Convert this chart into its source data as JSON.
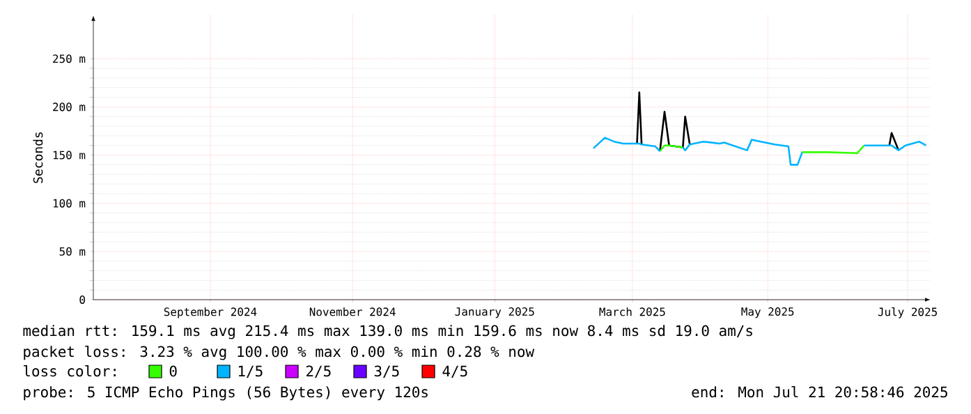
{
  "chart_data": {
    "type": "line",
    "ylabel": "Seconds",
    "x": [
      "2025-02-24",
      "2025-03-01",
      "2025-03-05",
      "2025-03-09",
      "2025-03-15",
      "2025-03-16",
      "2025-03-17",
      "2025-03-23",
      "2025-03-25",
      "2025-03-27",
      "2025-03-29",
      "2025-04-04",
      "2025-04-05",
      "2025-04-07",
      "2025-04-13",
      "2025-04-20",
      "2025-04-22",
      "2025-05-02",
      "2025-05-04",
      "2025-05-08",
      "2025-05-14",
      "2025-05-20",
      "2025-05-21",
      "2025-05-24",
      "2025-05-26",
      "2025-06-06",
      "2025-06-19",
      "2025-06-22",
      "2025-07-03",
      "2025-07-04",
      "2025-07-07",
      "2025-07-10",
      "2025-07-16",
      "2025-07-19"
    ],
    "series": [
      {
        "color": "#000000",
        "values": [
          null,
          null,
          null,
          null,
          162,
          215,
          161,
          null,
          154,
          195,
          160,
          158,
          190,
          161,
          null,
          null,
          null,
          null,
          null,
          null,
          null,
          null,
          null,
          null,
          null,
          null,
          null,
          null,
          160,
          173,
          155,
          null,
          null,
          null
        ]
      },
      {
        "name": "0",
        "color": "#33ff00",
        "values": [
          null,
          null,
          null,
          null,
          null,
          null,
          null,
          null,
          154,
          160,
          160,
          158,
          null,
          null,
          null,
          null,
          null,
          null,
          null,
          null,
          null,
          null,
          null,
          null,
          153,
          153,
          152,
          160,
          null,
          null,
          null,
          null,
          null,
          null
        ]
      },
      {
        "name": "1/5",
        "color": "#00b4ff",
        "values": [
          157,
          168,
          164,
          162,
          162,
          162,
          161,
          159,
          154,
          null,
          null,
          158,
          155,
          161,
          164,
          162,
          163,
          155,
          166,
          164,
          161,
          159,
          140,
          140,
          153,
          null,
          null,
          160,
          160,
          160,
          155,
          160,
          164,
          160
        ]
      },
      {
        "name": "2/5",
        "color": "#cc00ff",
        "values": [
          null,
          null,
          null,
          null,
          null,
          null,
          null,
          null,
          null,
          null,
          null,
          null,
          null,
          null,
          null,
          null,
          null,
          null,
          null,
          null,
          null,
          null,
          null,
          null,
          null,
          null,
          null,
          null,
          null,
          null,
          null,
          null,
          null,
          null
        ]
      },
      {
        "name": "3/5",
        "color": "#6a00ff",
        "values": [
          null,
          null,
          null,
          null,
          null,
          null,
          null,
          null,
          null,
          null,
          null,
          null,
          null,
          null,
          null,
          null,
          null,
          null,
          null,
          null,
          null,
          null,
          null,
          null,
          null,
          null,
          null,
          null,
          null,
          null,
          null,
          null,
          null,
          null
        ]
      },
      {
        "name": "4/5",
        "color": "#ff0000",
        "values": [
          null,
          null,
          null,
          null,
          null,
          null,
          null,
          null,
          null,
          null,
          null,
          null,
          null,
          null,
          null,
          null,
          null,
          null,
          null,
          null,
          null,
          null,
          null,
          null,
          null,
          null,
          null,
          null,
          null,
          null,
          null,
          null,
          null,
          null
        ]
      }
    ],
    "xlim": [
      "2024-07-21",
      "2025-07-21"
    ],
    "xticks": [
      {
        "value": "2024-09-10",
        "label": "September 2024"
      },
      {
        "value": "2024-11-11",
        "label": "November 2024"
      },
      {
        "value": "2025-01-12",
        "label": "January 2025"
      },
      {
        "value": "2025-03-13",
        "label": "March 2025"
      },
      {
        "value": "2025-05-11",
        "label": "May 2025"
      },
      {
        "value": "2025-07-11",
        "label": "July 2025"
      }
    ],
    "ylim": [
      0,
      295
    ],
    "yticks": [
      0,
      {
        "value": 50,
        "label": "50 m"
      },
      {
        "value": 100,
        "label": "100 m"
      },
      {
        "value": 150,
        "label": "150 m"
      },
      {
        "value": 200,
        "label": "200 m"
      },
      {
        "value": 250,
        "label": "250 m"
      }
    ],
    "grid": true,
    "legend": "bottom",
    "legend_title": "loss color:",
    "line_style": "solid",
    "annotations": [
      "median rtt:  159.1 ms avg  215.4 ms max  139.0 ms min  159.6 ms now  8.4 ms sd  19.0   am/s",
      "packet loss: 3.23 % avg  100.00 % max  0.00 % min  0.28 % now",
      "probe:       5 ICMP Echo Pings (56 Bytes) every 120s",
      "end: Mon Jul 21 20:58:46 2025"
    ]
  }
}
